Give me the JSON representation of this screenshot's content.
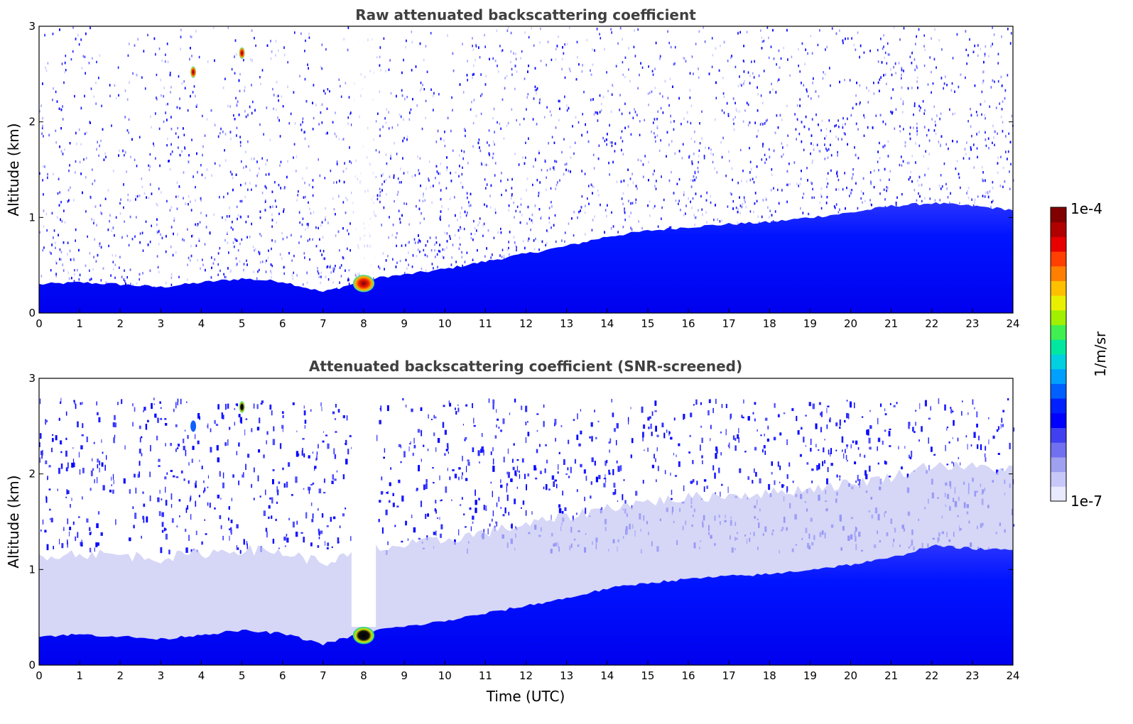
{
  "chart_data": [
    {
      "type": "heatmap",
      "title": "Raw attenuated backscattering coefficient",
      "xlabel": "",
      "ylabel": "Altitude (km)",
      "xlim": [
        0,
        24
      ],
      "ylim": [
        0,
        3
      ],
      "x_ticks": [
        "0",
        "1",
        "2",
        "3",
        "4",
        "5",
        "6",
        "7",
        "8",
        "9",
        "10",
        "11",
        "12",
        "13",
        "14",
        "15",
        "16",
        "17",
        "18",
        "19",
        "20",
        "21",
        "22",
        "23",
        "24"
      ],
      "y_ticks": [
        "0",
        "1",
        "2",
        "3"
      ],
      "boundary_layer_top_km": {
        "x": [
          0,
          1,
          2,
          3,
          4,
          5,
          6,
          7,
          7.7,
          8.5,
          9,
          10,
          11,
          12,
          13,
          14,
          15,
          16,
          17,
          18,
          19,
          20,
          21,
          22,
          23,
          24
        ],
        "y": [
          0.3,
          0.32,
          0.3,
          0.27,
          0.32,
          0.36,
          0.33,
          0.22,
          0.3,
          0.38,
          0.4,
          0.46,
          0.54,
          0.62,
          0.7,
          0.8,
          0.86,
          0.9,
          0.93,
          0.95,
          1.0,
          1.05,
          1.12,
          1.15,
          1.12,
          1.08
        ]
      },
      "features": [
        {
          "label": "rain/cloud echo",
          "x": [
            7.7,
            8.3
          ],
          "y": [
            0.22,
            0.4
          ],
          "level": "high"
        },
        {
          "label": "signal-void column",
          "x": [
            7.7,
            8.3
          ],
          "y": [
            0.4,
            3.0
          ],
          "level": "none"
        },
        {
          "label": "small cloud",
          "x": [
            3.8
          ],
          "y": [
            2.52
          ],
          "level": "high"
        },
        {
          "label": "small cloud",
          "x": [
            5.0
          ],
          "y": [
            2.72
          ],
          "level": "high"
        }
      ]
    },
    {
      "type": "heatmap",
      "title": "Attenuated backscattering coefficient (SNR-screened)",
      "xlabel": "Time (UTC)",
      "ylabel": "Altitude (km)",
      "xlim": [
        0,
        24
      ],
      "ylim": [
        0,
        3
      ],
      "x_ticks": [
        "0",
        "1",
        "2",
        "3",
        "4",
        "5",
        "6",
        "7",
        "8",
        "9",
        "10",
        "11",
        "12",
        "13",
        "14",
        "15",
        "16",
        "17",
        "18",
        "19",
        "20",
        "21",
        "22",
        "23",
        "24"
      ],
      "y_ticks": [
        "0",
        "1",
        "2",
        "3"
      ],
      "boundary_layer_top_km": {
        "x": [
          0,
          1,
          2,
          3,
          4,
          5,
          6,
          7,
          7.7,
          8.5,
          9,
          10,
          11,
          12,
          13,
          14,
          15,
          16,
          17,
          18,
          19,
          20,
          21,
          22,
          23,
          24
        ],
        "y": [
          0.3,
          0.32,
          0.3,
          0.27,
          0.32,
          0.36,
          0.33,
          0.22,
          0.3,
          0.38,
          0.4,
          0.46,
          0.54,
          0.62,
          0.7,
          0.8,
          0.86,
          0.9,
          0.93,
          0.95,
          1.0,
          1.05,
          1.12,
          1.25,
          1.22,
          1.2
        ]
      },
      "features": [
        {
          "label": "rain/cloud echo",
          "x": [
            7.7,
            8.3
          ],
          "y": [
            0.22,
            0.4
          ],
          "level": "saturated"
        },
        {
          "label": "signal-void column",
          "x": [
            7.7,
            8.3
          ],
          "y": [
            0.4,
            3.0
          ],
          "level": "none"
        },
        {
          "label": "small cloud",
          "x": [
            3.8
          ],
          "y": [
            2.5
          ],
          "level": "medium"
        },
        {
          "label": "small cloud",
          "x": [
            5.0
          ],
          "y": [
            2.7
          ],
          "level": "saturated"
        }
      ]
    }
  ],
  "colorbar": {
    "label": "1/m/sr",
    "max_label": "1e-4",
    "min_label": "1e-7",
    "scale": "log",
    "range": [
      1e-07,
      0.0001
    ],
    "colors": [
      "#eaeaff",
      "#c8c8f8",
      "#a0a0f0",
      "#7070f0",
      "#4040f0",
      "#0000ff",
      "#0020ff",
      "#0060ff",
      "#00a0ff",
      "#00d0e0",
      "#00e8a0",
      "#40f050",
      "#a0f000",
      "#e8f000",
      "#ffc000",
      "#ff8000",
      "#ff4000",
      "#e80000",
      "#b00000",
      "#800000"
    ]
  }
}
